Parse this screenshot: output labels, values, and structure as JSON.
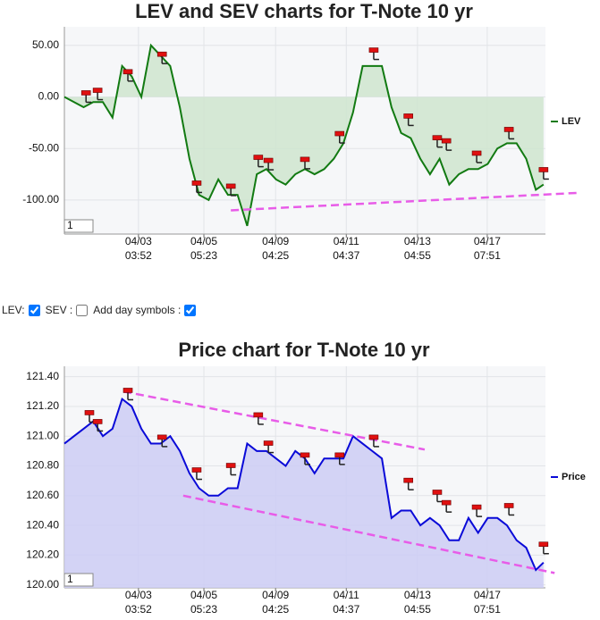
{
  "chart_data": [
    {
      "type": "line",
      "title": "LEV and SEV charts for T-Note 10 yr",
      "x": [
        0,
        2,
        4,
        6,
        8,
        10,
        12,
        14,
        16,
        18,
        20,
        22,
        24,
        26,
        28,
        30,
        32,
        34,
        36,
        38,
        40,
        42,
        44,
        46,
        48,
        50,
        52,
        54,
        56,
        58,
        60,
        62,
        64,
        66,
        68,
        70,
        72,
        74,
        76,
        78,
        80,
        82,
        84,
        86,
        88,
        90,
        92,
        94,
        96,
        98,
        99.6
      ],
      "series": [
        {
          "name": "LEV",
          "color": "#127a12",
          "fill": "#cfe5cf",
          "values": [
            0,
            -5,
            -10,
            -5,
            -5,
            -20,
            30,
            20,
            0,
            50,
            40,
            30,
            -10,
            -60,
            -95,
            -100,
            -80,
            -95,
            -95,
            -125,
            -75,
            -70,
            -80,
            -85,
            -75,
            -70,
            -75,
            -70,
            -60,
            -45,
            -15,
            30,
            30,
            30,
            -10,
            -35,
            -40,
            -60,
            -75,
            -60,
            -85,
            -75,
            -70,
            -70,
            -65,
            -50,
            -45,
            -45,
            -60,
            -90,
            -85
          ]
        }
      ],
      "symbols": {
        "x": [
          4.5,
          6.9,
          13.2,
          20.3,
          27.5,
          34.6,
          40.3,
          42.4,
          50,
          57.2,
          64.3,
          71.5,
          77.5,
          79.4,
          85.7,
          92.4,
          99.6
        ],
        "y": [
          3.5,
          6,
          24,
          41,
          -84,
          -87,
          -59,
          -62,
          -61,
          -36,
          45,
          -19,
          -40,
          -43,
          -55,
          -32,
          -71
        ]
      },
      "trend_lines": [
        {
          "x": [
            34.6,
            107
          ],
          "y": [
            -110,
            -93
          ]
        }
      ],
      "xlim": [
        0,
        100
      ],
      "ylim": [
        -133,
        68
      ],
      "xticks": [
        {
          "value": 15.4,
          "label": "04/03",
          "time": "03:52"
        },
        {
          "value": 29,
          "label": "04/05",
          "time": "05:23"
        },
        {
          "value": 43.9,
          "label": "04/09",
          "time": "04:25"
        },
        {
          "value": 58.6,
          "label": "04/11",
          "time": "04:37"
        },
        {
          "value": 73.4,
          "label": "04/13",
          "time": "04:55"
        },
        {
          "value": 87.9,
          "label": "04/17",
          "time": "07:51"
        }
      ],
      "yticks": [
        {
          "value": 50,
          "label": "50.00"
        },
        {
          "value": 0,
          "label": "0.00"
        },
        {
          "value": -50,
          "label": "-50.00"
        },
        {
          "value": -100,
          "label": "-100.00"
        }
      ],
      "grid": true,
      "legend": "right",
      "input": "1"
    },
    {
      "type": "line",
      "title": "Price chart for T-Note 10 yr",
      "x": [
        0,
        2,
        4,
        6,
        8,
        10,
        12,
        14,
        16,
        18,
        20,
        22,
        24,
        26,
        28,
        30,
        32,
        34,
        36,
        38,
        40,
        42,
        44,
        46,
        48,
        50,
        52,
        54,
        56,
        58,
        60,
        62,
        64,
        66,
        68,
        70,
        72,
        74,
        76,
        78,
        80,
        82,
        84,
        86,
        88,
        90,
        92,
        94,
        96,
        98,
        99.6
      ],
      "series": [
        {
          "name": "Price",
          "color": "#0a0ad8",
          "fill": "#ccccf4",
          "values": [
            120.95,
            121.0,
            121.05,
            121.1,
            121.0,
            121.05,
            121.25,
            121.2,
            121.05,
            120.95,
            120.95,
            121.0,
            120.9,
            120.75,
            120.65,
            120.6,
            120.6,
            120.65,
            120.65,
            120.95,
            120.9,
            120.9,
            120.85,
            120.8,
            120.9,
            120.85,
            120.75,
            120.85,
            120.85,
            120.85,
            121.0,
            120.95,
            120.9,
            120.85,
            120.45,
            120.5,
            120.5,
            120.4,
            120.45,
            120.4,
            120.3,
            120.3,
            120.45,
            120.35,
            120.45,
            120.45,
            120.4,
            120.3,
            120.25,
            120.1,
            120.15
          ]
        }
      ],
      "symbols": {
        "x": [
          5.2,
          6.9,
          13.2,
          20.3,
          27.5,
          34.6,
          40.3,
          42.4,
          50,
          57.2,
          64.3,
          71.5,
          77.5,
          79.4,
          85.7,
          92.4,
          99.6
        ],
        "y": [
          121.155,
          121.095,
          121.305,
          120.99,
          120.77,
          120.8,
          121.14,
          120.95,
          120.87,
          120.87,
          120.99,
          120.7,
          120.62,
          120.55,
          120.52,
          120.53,
          120.27
        ]
      },
      "trend_lines": [
        {
          "x": [
            12.3,
            74.9
          ],
          "y": [
            121.3,
            120.91
          ]
        },
        {
          "x": [
            24.7,
            101.9
          ],
          "y": [
            120.6,
            120.08
          ]
        }
      ],
      "xlim": [
        0,
        100
      ],
      "ylim": [
        119.98,
        121.47
      ],
      "xticks": [
        {
          "value": 15.4,
          "label": "04/03",
          "time": "03:52"
        },
        {
          "value": 29,
          "label": "04/05",
          "time": "05:23"
        },
        {
          "value": 43.9,
          "label": "04/09",
          "time": "04:25"
        },
        {
          "value": 58.6,
          "label": "04/11",
          "time": "04:37"
        },
        {
          "value": 73.4,
          "label": "04/13",
          "time": "04:55"
        },
        {
          "value": 87.9,
          "label": "04/17",
          "time": "07:51"
        }
      ],
      "yticks": [
        {
          "value": 121.4,
          "label": "121.40"
        },
        {
          "value": 121.2,
          "label": "121.20"
        },
        {
          "value": 121,
          "label": "121.00"
        },
        {
          "value": 120.8,
          "label": "120.80"
        },
        {
          "value": 120.6,
          "label": "120.60"
        },
        {
          "value": 120.4,
          "label": "120.40"
        },
        {
          "value": 120.2,
          "label": "120.20"
        },
        {
          "value": 120,
          "label": "120.00"
        }
      ],
      "grid": true,
      "legend": "right",
      "input": "1"
    }
  ],
  "controls": {
    "lev": {
      "label": "LEV:",
      "checked": true
    },
    "sev": {
      "label": "SEV :",
      "checked": false
    },
    "day_symbols": {
      "label": "Add day symbols :",
      "checked": true
    }
  }
}
